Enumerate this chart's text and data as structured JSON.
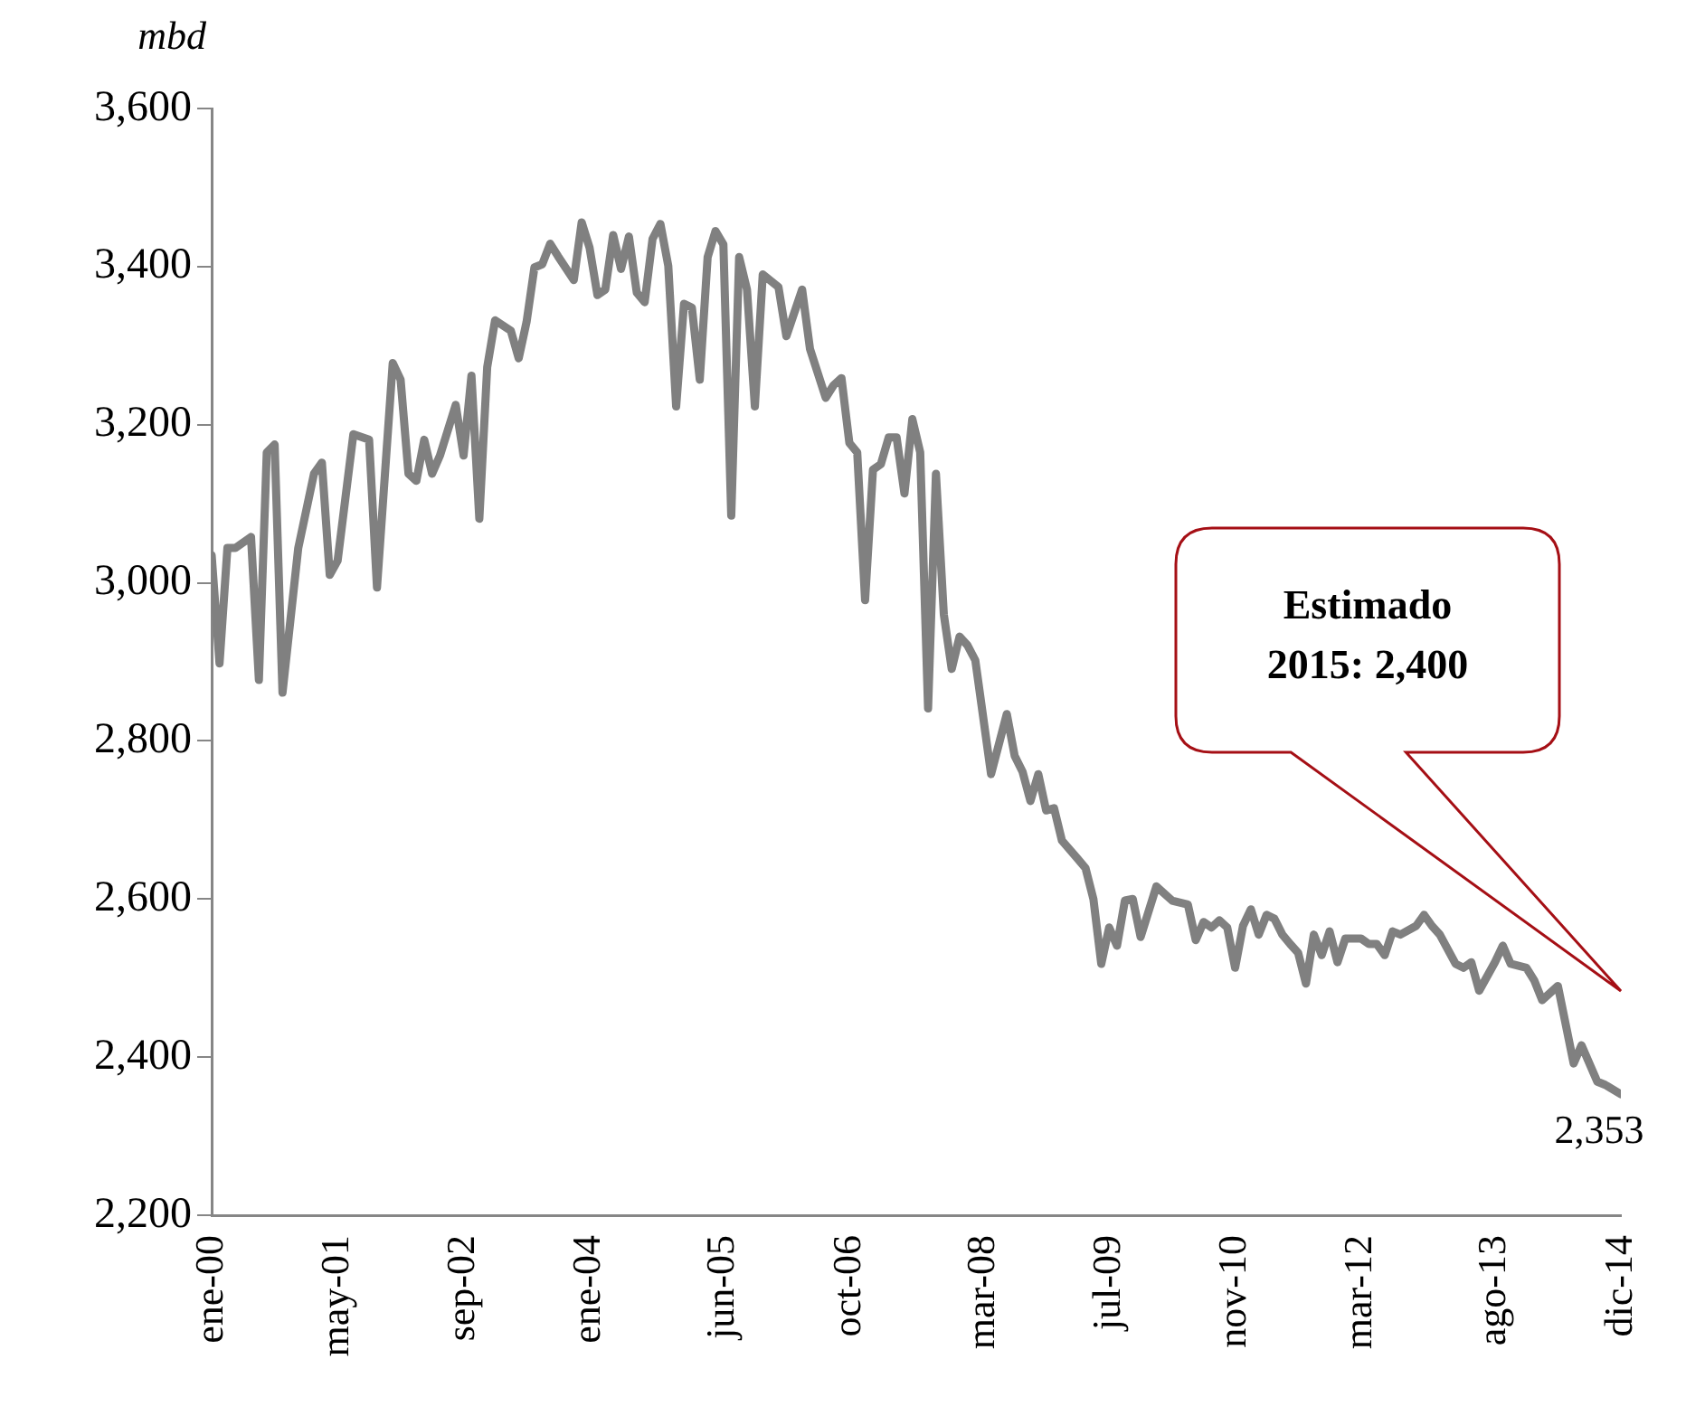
{
  "chart_data": {
    "type": "line",
    "ylabel": "mbd",
    "xlim": [
      "2000-01",
      "2014-12"
    ],
    "xticks": [
      {
        "value": "2000-01",
        "label": "ene-00"
      },
      {
        "value": "2001-05",
        "label": "may-01"
      },
      {
        "value": "2002-09",
        "label": "sep-02"
      },
      {
        "value": "2004-01",
        "label": "ene-04"
      },
      {
        "value": "2005-06",
        "label": "jun-05"
      },
      {
        "value": "2006-10",
        "label": "oct-06"
      },
      {
        "value": "2008-03",
        "label": "mar-08"
      },
      {
        "value": "2009-07",
        "label": "jul-09"
      },
      {
        "value": "2010-11",
        "label": "nov-10"
      },
      {
        "value": "2012-03",
        "label": "mar-12"
      },
      {
        "value": "2013-08",
        "label": "ago-13"
      },
      {
        "value": "2014-12",
        "label": "dic-14"
      }
    ],
    "ylim": [
      2200,
      3600
    ],
    "yticks": [
      {
        "value": 2200,
        "label": "2,200"
      },
      {
        "value": 2400,
        "label": "2,400"
      },
      {
        "value": 2600,
        "label": "2,600"
      },
      {
        "value": 2800,
        "label": "2,800"
      },
      {
        "value": 3000,
        "label": "3,000"
      },
      {
        "value": 3200,
        "label": "3,200"
      },
      {
        "value": 3400,
        "label": "3,400"
      },
      {
        "value": 3600,
        "label": "3,600"
      }
    ],
    "grid": false,
    "legend": false,
    "marker": "none",
    "line_style": "solid",
    "x": [
      "2000-01",
      "2000-02",
      "2000-03",
      "2000-04",
      "2000-06",
      "2000-07",
      "2000-08",
      "2000-09",
      "2000-10",
      "2000-12",
      "2001-02",
      "2001-03",
      "2001-04",
      "2001-05",
      "2001-07",
      "2001-09",
      "2001-10",
      "2001-12",
      "2002-01",
      "2002-02",
      "2002-03",
      "2002-04",
      "2002-05",
      "2002-06",
      "2002-08",
      "2002-09",
      "2002-10",
      "2002-11",
      "2002-12",
      "2003-01",
      "2003-03",
      "2003-04",
      "2003-05",
      "2003-06",
      "2003-07",
      "2003-08",
      "2003-09",
      "2003-11",
      "2003-12",
      "2004-01",
      "2004-02",
      "2004-03",
      "2004-04",
      "2004-05",
      "2004-06",
      "2004-07",
      "2004-08",
      "2004-09",
      "2004-10",
      "2004-11",
      "2004-12",
      "2005-01",
      "2005-02",
      "2005-03",
      "2005-04",
      "2005-05",
      "2005-06",
      "2005-07",
      "2005-08",
      "2005-09",
      "2005-10",
      "2005-11",
      "2006-01",
      "2006-02",
      "2006-04",
      "2006-05",
      "2006-07",
      "2006-08",
      "2006-09",
      "2006-10",
      "2006-11",
      "2006-12",
      "2007-01",
      "2007-02",
      "2007-03",
      "2007-04",
      "2007-05",
      "2007-06",
      "2007-07",
      "2007-08",
      "2007-09",
      "2007-10",
      "2007-11",
      "2007-12",
      "2008-01",
      "2008-02",
      "2008-04",
      "2008-06",
      "2008-07",
      "2008-08",
      "2008-09",
      "2008-10",
      "2008-11",
      "2008-12",
      "2009-01",
      "2009-03",
      "2009-04",
      "2009-05",
      "2009-06",
      "2009-07",
      "2009-08",
      "2009-09",
      "2009-10",
      "2009-11",
      "2010-01",
      "2010-03",
      "2010-05",
      "2010-06",
      "2010-07",
      "2010-08",
      "2010-09",
      "2010-10",
      "2010-11",
      "2010-12",
      "2011-01",
      "2011-02",
      "2011-03",
      "2011-04",
      "2011-05",
      "2011-06",
      "2011-07",
      "2011-08",
      "2011-09",
      "2011-10",
      "2011-11",
      "2011-12",
      "2012-01",
      "2012-03",
      "2012-04",
      "2012-05",
      "2012-06",
      "2012-07",
      "2012-08",
      "2012-10",
      "2012-11",
      "2012-12",
      "2013-01",
      "2013-03",
      "2013-04",
      "2013-05",
      "2013-06",
      "2013-08",
      "2013-09",
      "2013-10",
      "2013-12",
      "2014-01",
      "2014-02",
      "2014-04",
      "2014-06",
      "2014-07",
      "2014-09",
      "2014-10",
      "2014-12"
    ],
    "series": [
      {
        "color": "#808080",
        "values": [
          3035,
          2898,
          3044,
          3044,
          3058,
          2877,
          3165,
          3175,
          2861,
          3044,
          3138,
          3152,
          3010,
          3028,
          3188,
          3181,
          2994,
          3278,
          3257,
          3138,
          3129,
          3181,
          3138,
          3161,
          3225,
          3161,
          3262,
          3081,
          3273,
          3332,
          3319,
          3284,
          3330,
          3399,
          3403,
          3429,
          3413,
          3383,
          3456,
          3424,
          3364,
          3371,
          3440,
          3397,
          3438,
          3367,
          3355,
          3435,
          3454,
          3401,
          3223,
          3353,
          3348,
          3257,
          3412,
          3445,
          3428,
          3085,
          3412,
          3371,
          3223,
          3390,
          3374,
          3312,
          3371,
          3296,
          3234,
          3250,
          3259,
          3177,
          3165,
          2978,
          3143,
          3150,
          3184,
          3184,
          3113,
          3207,
          3165,
          2841,
          3138,
          2960,
          2891,
          2932,
          2921,
          2902,
          2758,
          2834,
          2781,
          2761,
          2724,
          2758,
          2712,
          2715,
          2674,
          2651,
          2639,
          2600,
          2518,
          2564,
          2541,
          2598,
          2600,
          2552,
          2616,
          2598,
          2593,
          2548,
          2571,
          2564,
          2573,
          2564,
          2513,
          2566,
          2587,
          2555,
          2580,
          2575,
          2555,
          2543,
          2532,
          2493,
          2555,
          2529,
          2559,
          2520,
          2550,
          2550,
          2543,
          2543,
          2529,
          2559,
          2555,
          2566,
          2580,
          2566,
          2555,
          2518,
          2513,
          2520,
          2484,
          2520,
          2541,
          2518,
          2513,
          2497,
          2472,
          2490,
          2392,
          2415,
          2369,
          2365,
          2353
        ]
      }
    ],
    "annotations": [
      {
        "text": "2,353",
        "x": "2014-12",
        "y": 2353
      },
      "Estimado 2015: 2,400"
    ]
  }
}
